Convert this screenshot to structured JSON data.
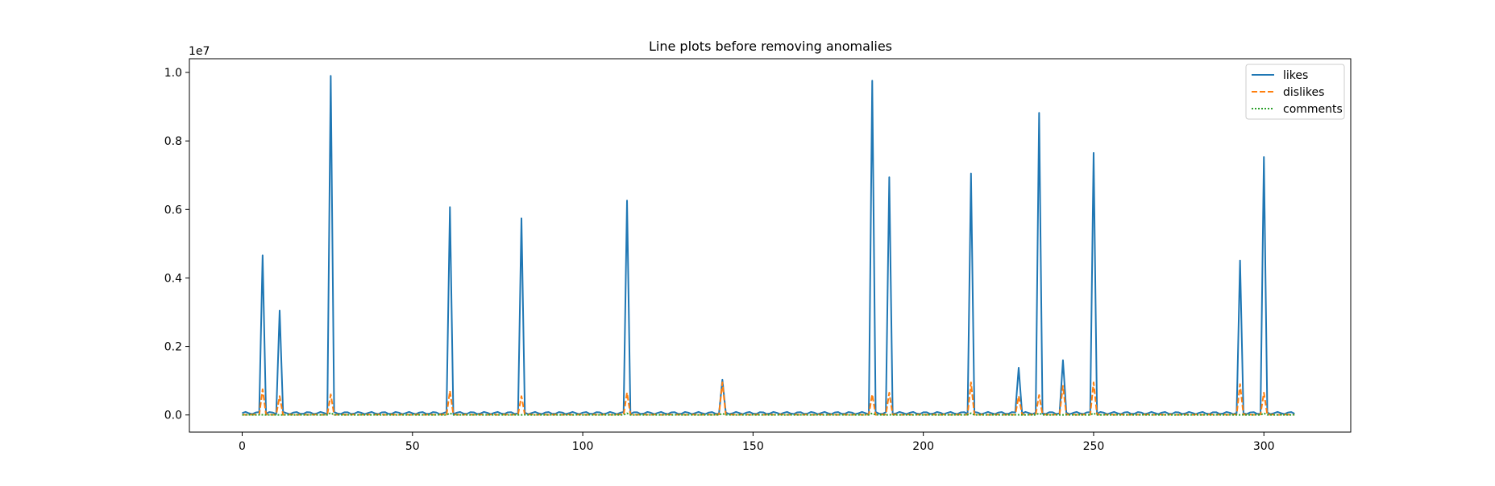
{
  "chart_data": {
    "type": "line",
    "title": "Line plots before removing anomalies",
    "xlabel": "",
    "ylabel": "",
    "y_offset_label": "1e7",
    "xlim": [
      -15.5,
      325.5
    ],
    "ylim": [
      -0.05,
      1.04
    ],
    "x_ticks": [
      0,
      50,
      100,
      150,
      200,
      250,
      300
    ],
    "x_tick_labels": [
      "0",
      "50",
      "100",
      "150",
      "200",
      "250",
      "300"
    ],
    "y_ticks": [
      0.0,
      0.2,
      0.4,
      0.6,
      0.8,
      1.0
    ],
    "y_tick_labels": [
      "0.0",
      "0.2",
      "0.4",
      "0.6",
      "0.8",
      "1.0"
    ],
    "grid": false,
    "legend_position": "top-right",
    "n_points": 310,
    "series": [
      {
        "name": "likes",
        "color": "#1f77b4",
        "dash": "solid",
        "baseline": 0.006,
        "peaks": [
          [
            6,
            0.466
          ],
          [
            11,
            0.305
          ],
          [
            26,
            0.99
          ],
          [
            61,
            0.607
          ],
          [
            82,
            0.574
          ],
          [
            113,
            0.626
          ],
          [
            141,
            0.103
          ],
          [
            185,
            0.976
          ],
          [
            190,
            0.694
          ],
          [
            214,
            0.705
          ],
          [
            228,
            0.138
          ],
          [
            234,
            0.882
          ],
          [
            241,
            0.16
          ],
          [
            250,
            0.765
          ],
          [
            293,
            0.451
          ],
          [
            300,
            0.753
          ]
        ]
      },
      {
        "name": "dislikes",
        "color": "#ff7f0e",
        "dash": "dashed",
        "baseline": 0.001,
        "peaks": [
          [
            6,
            0.075
          ],
          [
            11,
            0.055
          ],
          [
            26,
            0.06
          ],
          [
            61,
            0.07
          ],
          [
            82,
            0.055
          ],
          [
            113,
            0.065
          ],
          [
            141,
            0.095
          ],
          [
            185,
            0.06
          ],
          [
            190,
            0.065
          ],
          [
            214,
            0.095
          ],
          [
            228,
            0.055
          ],
          [
            234,
            0.058
          ],
          [
            241,
            0.085
          ],
          [
            250,
            0.095
          ],
          [
            293,
            0.09
          ],
          [
            300,
            0.065
          ]
        ]
      },
      {
        "name": "comments",
        "color": "#2ca02c",
        "dash": "dotted",
        "baseline": 0.0003,
        "peaks": [
          [
            26,
            0.006
          ],
          [
            61,
            0.005
          ],
          [
            113,
            0.005
          ],
          [
            141,
            0.004
          ],
          [
            185,
            0.005
          ],
          [
            214,
            0.005
          ],
          [
            234,
            0.005
          ],
          [
            250,
            0.005
          ],
          [
            300,
            0.005
          ]
        ]
      }
    ]
  }
}
